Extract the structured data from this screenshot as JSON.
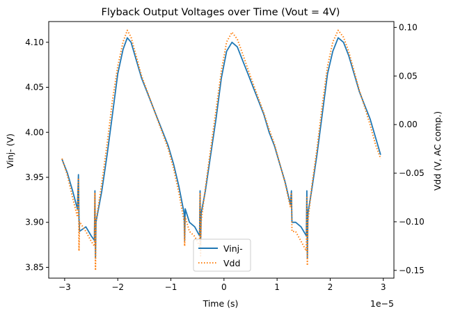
{
  "chart_data": {
    "type": "line",
    "title": "Flyback Output Voltages over Time (Vout = 4V)",
    "xlabel": "Time (s)",
    "x_offset_label": "1e−5",
    "ylabel_left": "Vinj- (V)",
    "ylabel_right": "Vdd (V, AC comp.)",
    "xlim": [
      -3.3,
      3.2
    ],
    "ylim_left": [
      3.838,
      4.123
    ],
    "ylim_right": [
      -0.158,
      0.106
    ],
    "x_ticks": [
      {
        "value": -3,
        "label": "−3"
      },
      {
        "value": -2,
        "label": "−2"
      },
      {
        "value": -1,
        "label": "−1"
      },
      {
        "value": 0,
        "label": "0"
      },
      {
        "value": 1,
        "label": "1"
      },
      {
        "value": 2,
        "label": "2"
      },
      {
        "value": 3,
        "label": "3"
      }
    ],
    "y_left_ticks": [
      {
        "value": 3.85,
        "label": "3.85"
      },
      {
        "value": 3.9,
        "label": "3.90"
      },
      {
        "value": 3.95,
        "label": "3.95"
      },
      {
        "value": 4.0,
        "label": "4.00"
      },
      {
        "value": 4.05,
        "label": "4.05"
      },
      {
        "value": 4.1,
        "label": "4.10"
      }
    ],
    "y_right_ticks": [
      {
        "value": -0.15,
        "label": "−0.15"
      },
      {
        "value": -0.1,
        "label": "−0.10"
      },
      {
        "value": -0.05,
        "label": "−0.05"
      },
      {
        "value": 0.0,
        "label": "0.00"
      },
      {
        "value": 0.05,
        "label": "0.05"
      },
      {
        "value": 0.1,
        "label": "0.10"
      }
    ],
    "grid": false,
    "legend_position": "bottom-center",
    "series": [
      {
        "name": "Vinj-",
        "axis": "left",
        "color": "#1f77b4",
        "style": "solid",
        "points": [
          [
            -3.05,
            3.97
          ],
          [
            -2.95,
            3.955
          ],
          [
            -2.85,
            3.935
          ],
          [
            -2.76,
            3.915
          ],
          [
            -2.74,
            3.953
          ],
          [
            -2.73,
            3.905
          ],
          [
            -2.72,
            3.89
          ],
          [
            -2.6,
            3.895
          ],
          [
            -2.5,
            3.885
          ],
          [
            -2.44,
            3.88
          ],
          [
            -2.43,
            3.935
          ],
          [
            -2.42,
            3.86
          ],
          [
            -2.41,
            3.9
          ],
          [
            -2.3,
            3.935
          ],
          [
            -2.2,
            3.975
          ],
          [
            -2.1,
            4.02
          ],
          [
            -2.0,
            4.065
          ],
          [
            -1.9,
            4.092
          ],
          [
            -1.82,
            4.105
          ],
          [
            -1.75,
            4.1
          ],
          [
            -1.65,
            4.08
          ],
          [
            -1.55,
            4.06
          ],
          [
            -1.45,
            4.045
          ],
          [
            -1.35,
            4.03
          ],
          [
            -1.25,
            4.015
          ],
          [
            -1.15,
            4.0
          ],
          [
            -1.05,
            3.985
          ],
          [
            -0.95,
            3.965
          ],
          [
            -0.85,
            3.94
          ],
          [
            -0.75,
            3.91
          ],
          [
            -0.74,
            3.88
          ],
          [
            -0.73,
            3.915
          ],
          [
            -0.65,
            3.9
          ],
          [
            -0.55,
            3.895
          ],
          [
            -0.46,
            3.885
          ],
          [
            -0.45,
            3.935
          ],
          [
            -0.44,
            3.875
          ],
          [
            -0.43,
            3.91
          ],
          [
            -0.35,
            3.935
          ],
          [
            -0.25,
            3.975
          ],
          [
            -0.15,
            4.015
          ],
          [
            -0.05,
            4.06
          ],
          [
            0.05,
            4.09
          ],
          [
            0.15,
            4.1
          ],
          [
            0.25,
            4.095
          ],
          [
            0.35,
            4.08
          ],
          [
            0.45,
            4.065
          ],
          [
            0.55,
            4.05
          ],
          [
            0.65,
            4.035
          ],
          [
            0.75,
            4.02
          ],
          [
            0.85,
            4.0
          ],
          [
            0.95,
            3.985
          ],
          [
            1.05,
            3.965
          ],
          [
            1.15,
            3.945
          ],
          [
            1.25,
            3.92
          ],
          [
            1.27,
            3.935
          ],
          [
            1.28,
            3.9
          ],
          [
            1.35,
            3.9
          ],
          [
            1.45,
            3.895
          ],
          [
            1.55,
            3.885
          ],
          [
            1.56,
            3.935
          ],
          [
            1.57,
            3.86
          ],
          [
            1.58,
            3.91
          ],
          [
            1.65,
            3.935
          ],
          [
            1.75,
            3.975
          ],
          [
            1.85,
            4.02
          ],
          [
            1.95,
            4.065
          ],
          [
            2.05,
            4.09
          ],
          [
            2.15,
            4.105
          ],
          [
            2.25,
            4.1
          ],
          [
            2.35,
            4.085
          ],
          [
            2.45,
            4.065
          ],
          [
            2.55,
            4.045
          ],
          [
            2.65,
            4.03
          ],
          [
            2.75,
            4.015
          ],
          [
            2.85,
            3.995
          ],
          [
            2.95,
            3.975
          ]
        ]
      },
      {
        "name": "Vdd",
        "axis": "right",
        "color": "#ff7f0e",
        "style": "dotted",
        "points": [
          [
            -3.05,
            -0.035
          ],
          [
            -2.95,
            -0.052
          ],
          [
            -2.85,
            -0.075
          ],
          [
            -2.76,
            -0.095
          ],
          [
            -2.74,
            -0.055
          ],
          [
            -2.73,
            -0.13
          ],
          [
            -2.72,
            -0.1
          ],
          [
            -2.6,
            -0.11
          ],
          [
            -2.5,
            -0.12
          ],
          [
            -2.44,
            -0.125
          ],
          [
            -2.43,
            -0.07
          ],
          [
            -2.42,
            -0.15
          ],
          [
            -2.41,
            -0.1
          ],
          [
            -2.3,
            -0.06
          ],
          [
            -2.2,
            -0.02
          ],
          [
            -2.1,
            0.025
          ],
          [
            -2.0,
            0.06
          ],
          [
            -1.9,
            0.085
          ],
          [
            -1.82,
            0.097
          ],
          [
            -1.75,
            0.09
          ],
          [
            -1.65,
            0.07
          ],
          [
            -1.55,
            0.05
          ],
          [
            -1.45,
            0.035
          ],
          [
            -1.35,
            0.02
          ],
          [
            -1.25,
            0.005
          ],
          [
            -1.15,
            -0.01
          ],
          [
            -1.05,
            -0.025
          ],
          [
            -0.95,
            -0.045
          ],
          [
            -0.85,
            -0.07
          ],
          [
            -0.75,
            -0.1
          ],
          [
            -0.74,
            -0.125
          ],
          [
            -0.73,
            -0.095
          ],
          [
            -0.65,
            -0.11
          ],
          [
            -0.55,
            -0.115
          ],
          [
            -0.46,
            -0.125
          ],
          [
            -0.45,
            -0.07
          ],
          [
            -0.44,
            -0.135
          ],
          [
            -0.43,
            -0.1
          ],
          [
            -0.35,
            -0.065
          ],
          [
            -0.25,
            -0.025
          ],
          [
            -0.15,
            0.015
          ],
          [
            -0.05,
            0.055
          ],
          [
            0.05,
            0.085
          ],
          [
            0.15,
            0.095
          ],
          [
            0.25,
            0.088
          ],
          [
            0.35,
            0.073
          ],
          [
            0.45,
            0.057
          ],
          [
            0.55,
            0.042
          ],
          [
            0.65,
            0.027
          ],
          [
            0.75,
            0.012
          ],
          [
            0.85,
            -0.005
          ],
          [
            0.95,
            -0.02
          ],
          [
            1.05,
            -0.04
          ],
          [
            1.15,
            -0.06
          ],
          [
            1.25,
            -0.085
          ],
          [
            1.27,
            -0.07
          ],
          [
            1.28,
            -0.11
          ],
          [
            1.35,
            -0.11
          ],
          [
            1.45,
            -0.12
          ],
          [
            1.55,
            -0.13
          ],
          [
            1.56,
            -0.075
          ],
          [
            1.57,
            -0.145
          ],
          [
            1.58,
            -0.1
          ],
          [
            1.65,
            -0.065
          ],
          [
            1.75,
            -0.025
          ],
          [
            1.85,
            0.02
          ],
          [
            1.95,
            0.06
          ],
          [
            2.05,
            0.085
          ],
          [
            2.15,
            0.097
          ],
          [
            2.25,
            0.09
          ],
          [
            2.35,
            0.075
          ],
          [
            2.45,
            0.055
          ],
          [
            2.55,
            0.035
          ],
          [
            2.65,
            0.018
          ],
          [
            2.75,
            0.0
          ],
          [
            2.85,
            -0.02
          ],
          [
            2.95,
            -0.035
          ]
        ]
      }
    ]
  }
}
